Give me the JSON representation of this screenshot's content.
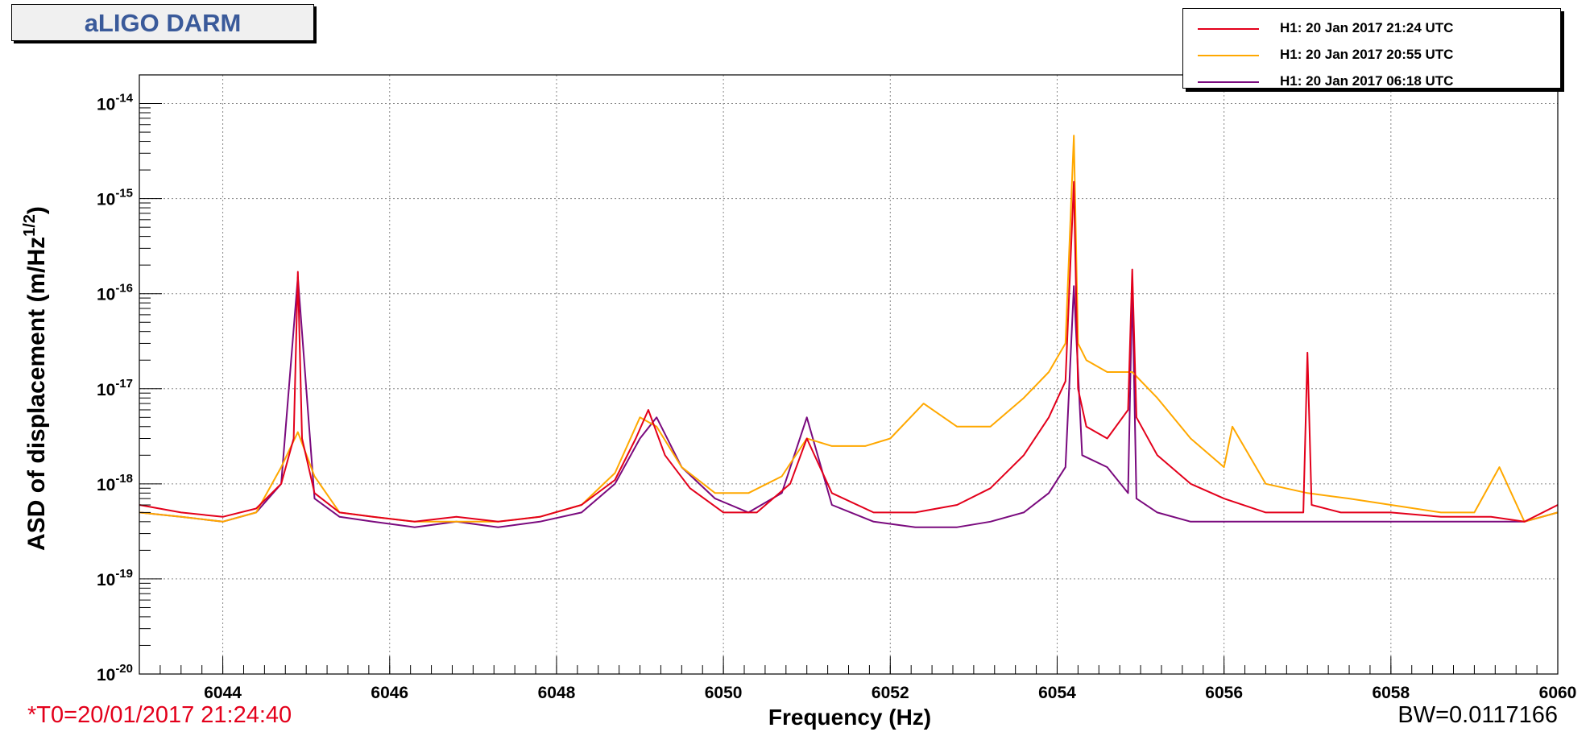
{
  "title": "aLIGO DARM",
  "footer": {
    "t0": "*T0=20/01/2017 21:24:40",
    "bw": "BW=0.0117166"
  },
  "colors": {
    "red": "#e3001b",
    "orange": "#ffa800",
    "purple": "#7a0a7e",
    "title_text": "#3a5a9a"
  },
  "legend": [
    {
      "label": "H1: 20 Jan 2017 21:24 UTC",
      "color": "#e3001b"
    },
    {
      "label": "H1: 20 Jan 2017 20:55 UTC",
      "color": "#ffa800"
    },
    {
      "label": "H1: 20 Jan 2017 06:18 UTC",
      "color": "#7a0a7e"
    }
  ],
  "chart_data": {
    "type": "line",
    "title": "aLIGO DARM",
    "xlabel": "Frequency (Hz)",
    "ylabel": "ASD of displacement (m/Hz^1/2)",
    "xlim": [
      6043,
      6060
    ],
    "ylim": [
      1e-20,
      2e-14
    ],
    "y_scale": "log",
    "grid": true,
    "legend_position": "top-right",
    "x_ticks": [
      "6044",
      "6046",
      "6048",
      "6050",
      "6052",
      "6054",
      "6056",
      "6058",
      "6060"
    ],
    "y_ticks": [
      "10^-20",
      "10^-19",
      "10^-18",
      "10^-17",
      "10^-16",
      "10^-15",
      "10^-14"
    ],
    "series": [
      {
        "name": "H1: 20 Jan 2017 21:24 UTC",
        "color": "#e3001b",
        "x": [
          6043.0,
          6043.5,
          6044.0,
          6044.4,
          6044.7,
          6044.85,
          6044.9,
          6044.95,
          6045.1,
          6045.4,
          6045.8,
          6046.3,
          6046.8,
          6047.3,
          6047.8,
          6048.3,
          6048.7,
          6048.95,
          6049.1,
          6049.3,
          6049.6,
          6050.0,
          6050.4,
          6050.8,
          6051.0,
          6051.3,
          6051.8,
          6052.3,
          6052.8,
          6053.2,
          6053.6,
          6053.9,
          6054.1,
          6054.2,
          6054.25,
          6054.35,
          6054.6,
          6054.85,
          6054.9,
          6054.95,
          6055.2,
          6055.6,
          6056.0,
          6056.5,
          6056.95,
          6057.0,
          6057.05,
          6057.4,
          6058.0,
          6058.6,
          6059.2,
          6059.6,
          6060.0
        ],
        "y": [
          6e-19,
          5e-19,
          4.5e-19,
          5.5e-19,
          1e-18,
          3e-18,
          1.7e-16,
          3e-18,
          8e-19,
          5e-19,
          4.5e-19,
          4e-19,
          4.5e-19,
          4e-19,
          4.5e-19,
          6e-19,
          1.1e-18,
          3e-18,
          6e-18,
          2e-18,
          9e-19,
          5e-19,
          5e-19,
          1e-18,
          3e-18,
          8e-19,
          5e-19,
          5e-19,
          6e-19,
          9e-19,
          2e-18,
          5e-18,
          1.2e-17,
          1.5e-15,
          1e-17,
          4e-18,
          3e-18,
          6e-18,
          1.8e-16,
          5e-18,
          2e-18,
          1e-18,
          7e-19,
          5e-19,
          5e-19,
          2.4e-17,
          6e-19,
          5e-19,
          5e-19,
          4.5e-19,
          4.5e-19,
          4e-19,
          6e-19
        ]
      },
      {
        "name": "H1: 20 Jan 2017 20:55 UTC",
        "color": "#ffa800",
        "x": [
          6043.0,
          6043.5,
          6044.0,
          6044.4,
          6044.7,
          6044.9,
          6045.1,
          6045.4,
          6045.8,
          6046.3,
          6046.8,
          6047.3,
          6047.8,
          6048.3,
          6048.7,
          6049.0,
          6049.2,
          6049.5,
          6049.9,
          6050.3,
          6050.7,
          6051.0,
          6051.3,
          6051.7,
          6052.0,
          6052.4,
          6052.8,
          6053.2,
          6053.6,
          6053.9,
          6054.1,
          6054.2,
          6054.25,
          6054.35,
          6054.6,
          6054.9,
          6055.2,
          6055.6,
          6056.0,
          6056.1,
          6056.5,
          6057.0,
          6057.5,
          6058.0,
          6058.6,
          6059.0,
          6059.3,
          6059.6,
          6060.0
        ],
        "y": [
          5e-19,
          4.5e-19,
          4e-19,
          5e-19,
          1.5e-18,
          3.5e-18,
          1.2e-18,
          5e-19,
          4.5e-19,
          4e-19,
          4e-19,
          4e-19,
          4.5e-19,
          6e-19,
          1.3e-18,
          5e-18,
          4e-18,
          1.5e-18,
          8e-19,
          8e-19,
          1.2e-18,
          3e-18,
          2.5e-18,
          2.5e-18,
          3e-18,
          7e-18,
          4e-18,
          4e-18,
          8e-18,
          1.5e-17,
          3e-17,
          4.6e-15,
          3e-17,
          2e-17,
          1.5e-17,
          1.5e-17,
          8e-18,
          3e-18,
          1.5e-18,
          4e-18,
          1e-18,
          8e-19,
          7e-19,
          6e-19,
          5e-19,
          5e-19,
          1.5e-18,
          4e-19,
          5e-19
        ]
      },
      {
        "name": "H1: 20 Jan 2017 06:18 UTC",
        "color": "#7a0a7e",
        "x": [
          6043.0,
          6043.5,
          6044.0,
          6044.4,
          6044.7,
          6044.9,
          6045.1,
          6045.4,
          6045.8,
          6046.3,
          6046.8,
          6047.3,
          6047.8,
          6048.3,
          6048.7,
          6049.0,
          6049.2,
          6049.5,
          6049.9,
          6050.3,
          6050.7,
          6051.0,
          6051.3,
          6051.8,
          6052.3,
          6052.8,
          6053.2,
          6053.6,
          6053.9,
          6054.1,
          6054.2,
          6054.3,
          6054.6,
          6054.85,
          6054.9,
          6054.95,
          6055.2,
          6055.6,
          6056.0,
          6056.5,
          6057.0,
          6057.5,
          6058.0,
          6058.6,
          6059.2,
          6059.6,
          6060.0
        ],
        "y": [
          5e-19,
          4.5e-19,
          4e-19,
          5e-19,
          1e-18,
          1.5e-16,
          7e-19,
          4.5e-19,
          4e-19,
          3.5e-19,
          4e-19,
          3.5e-19,
          4e-19,
          5e-19,
          1e-18,
          3e-18,
          5e-18,
          1.5e-18,
          7e-19,
          5e-19,
          8e-19,
          5e-18,
          6e-19,
          4e-19,
          3.5e-19,
          3.5e-19,
          4e-19,
          5e-19,
          8e-19,
          1.5e-18,
          1.2e-16,
          2e-18,
          1.5e-18,
          8e-19,
          1.2e-16,
          7e-19,
          5e-19,
          4e-19,
          4e-19,
          4e-19,
          4e-19,
          4e-19,
          4e-19,
          4e-19,
          4e-19,
          4e-19,
          5e-19
        ]
      }
    ]
  }
}
